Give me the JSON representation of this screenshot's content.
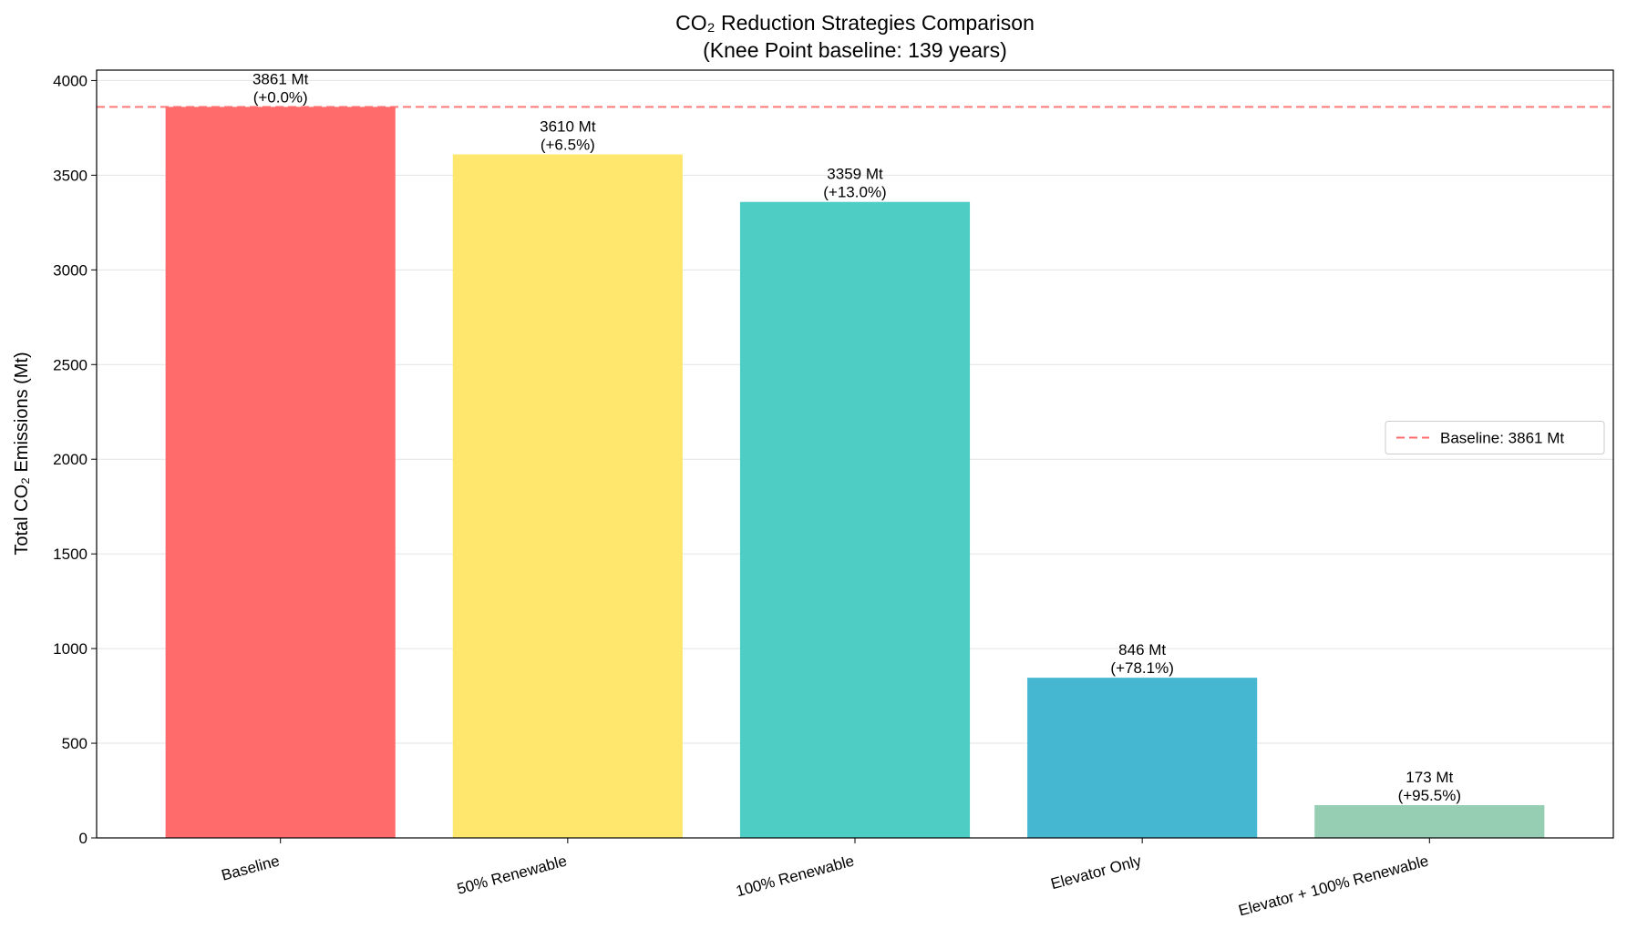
{
  "chart_data": {
    "type": "bar",
    "title": "CO₂ Reduction Strategies Comparison",
    "subtitle": "(Knee Point baseline: 139 years)",
    "y_label": "Total CO₂ Emissions (Mt)",
    "categories": [
      "Baseline",
      "50% Renewable",
      "100% Renewable",
      "Elevator Only",
      "Elevator + 100% Renewable"
    ],
    "values": [
      3861,
      3610,
      3359,
      846,
      173
    ],
    "value_labels": [
      "3861 Mt",
      "3610 Mt",
      "3359 Mt",
      "846 Mt",
      "173 Mt"
    ],
    "annotations": [
      "(+0.0%)",
      "(+6.5%)",
      "(+13.0%)",
      "(+78.1%)",
      "(+95.5%)"
    ],
    "colors": [
      "#ff6b6b",
      "#ffe66d",
      "#4ecdc4",
      "#45b7d1",
      "#96ceb4"
    ],
    "reference_line": {
      "value": 3861,
      "label": "Baseline: 3861 Mt",
      "color": "#ff6b6b"
    },
    "legend_location": "center right",
    "ylim": [
      0,
      4055
    ],
    "yticks": [
      0,
      500,
      1000,
      1500,
      2000,
      2500,
      3000,
      3500,
      4000
    ],
    "grid": true
  }
}
